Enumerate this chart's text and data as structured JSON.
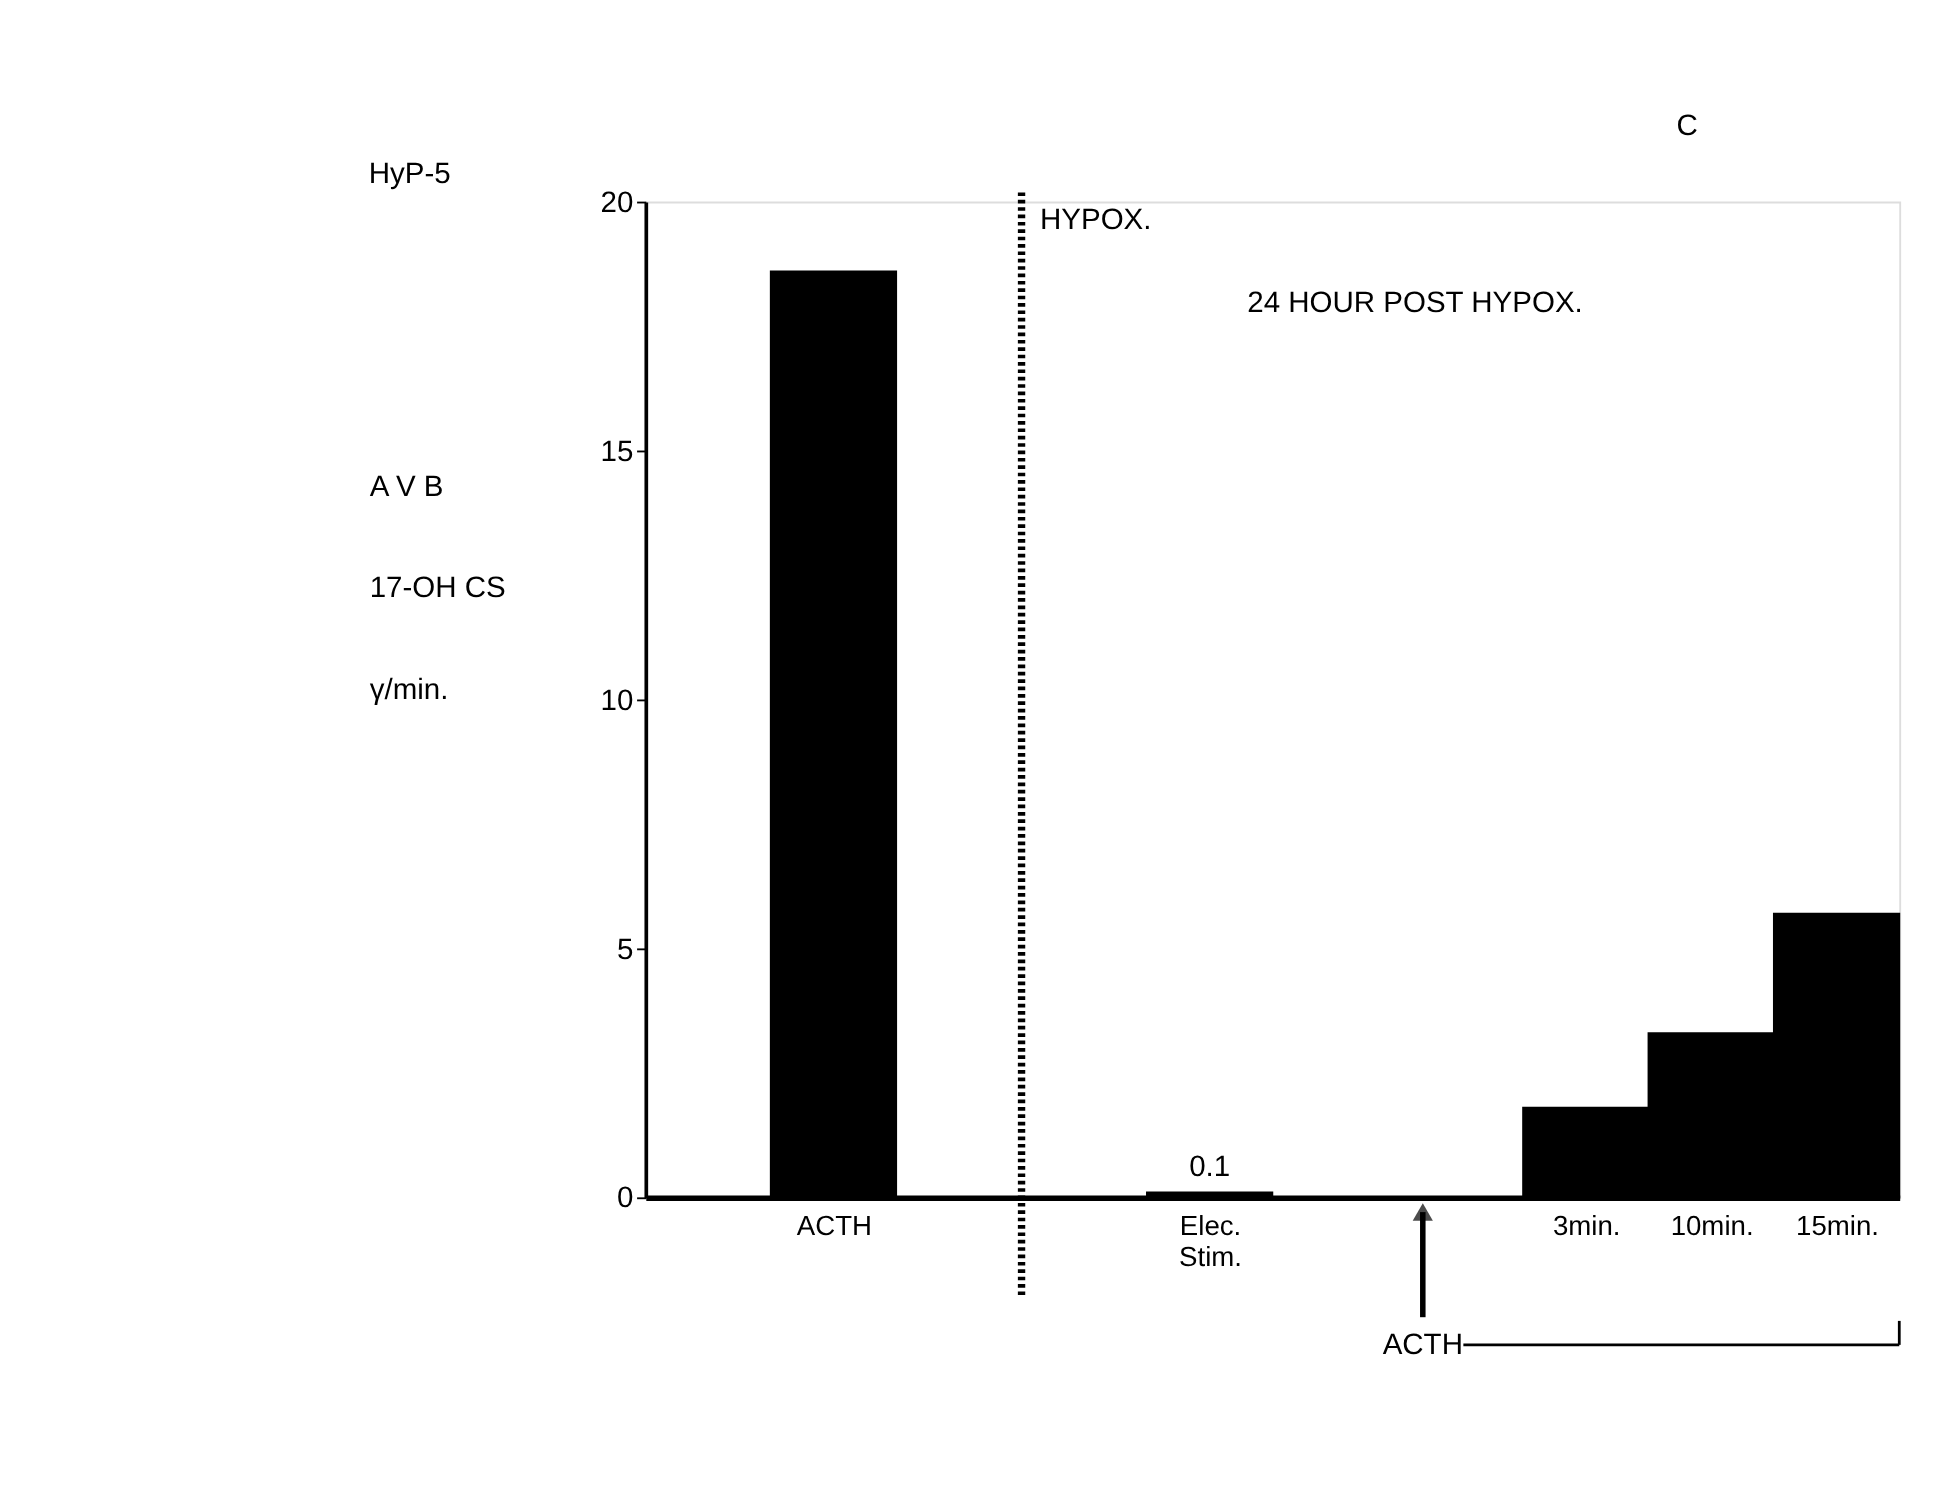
{
  "chart_data": {
    "type": "bar",
    "title": "C",
    "ylabel": "A V B\n17-OH CS\nγ/min.",
    "categories": [
      "ACTH",
      null,
      null,
      "Elec. Stim.",
      null,
      null,
      "3min.",
      "10min.",
      "15min."
    ],
    "values": [
      18.6,
      null,
      null,
      0.1,
      null,
      null,
      1.8,
      3.3,
      5.7
    ],
    "value_labels": [
      null,
      null,
      null,
      "0.1",
      null,
      null,
      null,
      null,
      null
    ],
    "color": "#000000",
    "ylim": [
      0,
      20
    ],
    "yticks": [
      0,
      5,
      10,
      15,
      20
    ],
    "grid": false,
    "annotations": [
      "HyP-5",
      "24 HOUR POST HYPOX.",
      "ACTH",
      "HYPOX."
    ]
  }
}
